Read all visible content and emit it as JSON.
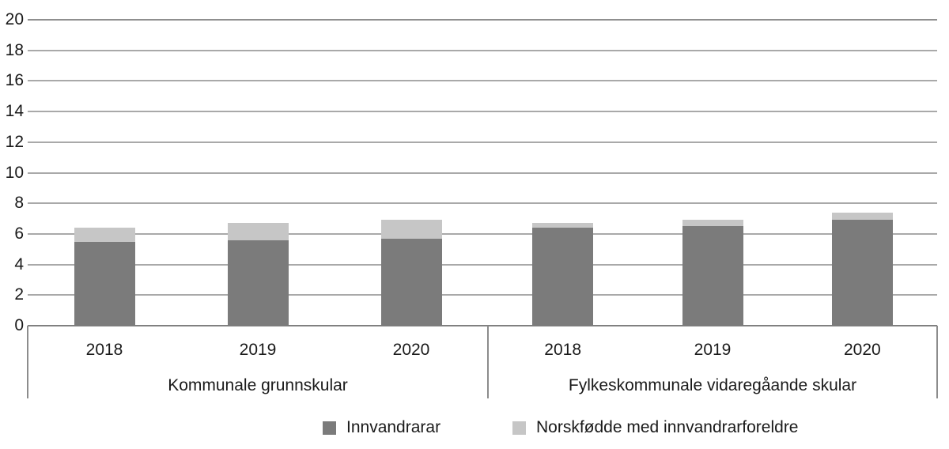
{
  "chart_data": {
    "type": "bar",
    "stacked": true,
    "title": "",
    "xlabel": "",
    "ylabel": "",
    "ylim": [
      0,
      20
    ],
    "ytick_step": 2,
    "yticks": [
      0,
      2,
      4,
      6,
      8,
      10,
      12,
      14,
      16,
      18,
      20
    ],
    "grid": "horizontal",
    "legend_position": "bottom",
    "series_names": [
      "Innvandrarar",
      "Norskfødde med innvandrarforeldre"
    ],
    "groups": [
      {
        "label": "Kommunale grunnskular",
        "categories": [
          "2018",
          "2019",
          "2020"
        ],
        "series": [
          {
            "name": "Innvandrarar",
            "values": [
              5.5,
              5.6,
              5.7
            ]
          },
          {
            "name": "Norskfødde med innvandrarforeldre",
            "values": [
              0.9,
              1.1,
              1.2
            ]
          }
        ],
        "totals": [
          6.4,
          6.7,
          6.9
        ]
      },
      {
        "label": "Fylkeskommunale vidaregåande skular",
        "categories": [
          "2018",
          "2019",
          "2020"
        ],
        "series": [
          {
            "name": "Innvandrarar",
            "values": [
              6.4,
              6.5,
              6.9
            ]
          },
          {
            "name": "Norskfødde med innvandrarforeldre",
            "values": [
              0.3,
              0.4,
              0.5
            ]
          }
        ],
        "totals": [
          6.7,
          6.9,
          7.4
        ]
      }
    ]
  },
  "legend": {
    "items": [
      {
        "label": "Innvandrarar",
        "color": "#7B7B7B"
      },
      {
        "label": "Norskfødde med innvandrarforeldre",
        "color": "#C6C6C6"
      }
    ]
  },
  "colors": {
    "bar_dark": "#7B7B7B",
    "bar_light": "#C6C6C6",
    "gridline": "#A9A9A9",
    "axis_line": "#808080",
    "text": "#1A1A1A"
  }
}
